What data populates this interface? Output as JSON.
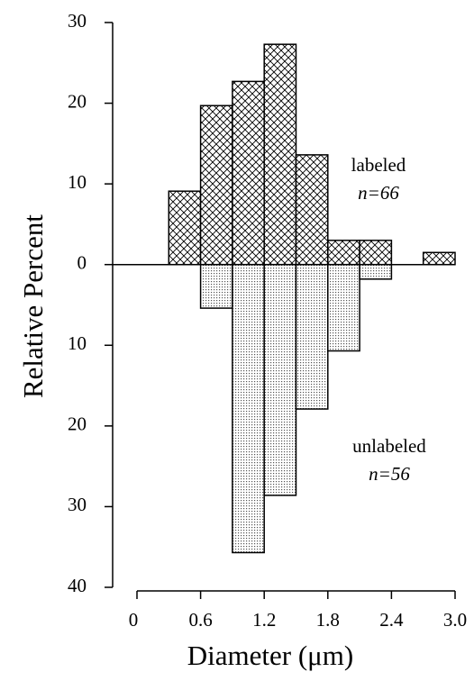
{
  "chart_data": {
    "type": "histogram",
    "ylabel": "Relative Percent",
    "xlabel": "Diameter (μm)",
    "bins": [
      0.3,
      0.6,
      0.9,
      1.2,
      1.5,
      1.8,
      2.1,
      2.4,
      2.7,
      3.0
    ],
    "series": [
      {
        "name": "labeled",
        "pattern": "crosshatch",
        "color": "#000000",
        "values": [
          9.1,
          19.7,
          22.7,
          27.3,
          13.6,
          3.0,
          3.0,
          0,
          1.5
        ]
      },
      {
        "name": "unlabeled",
        "pattern": "dots",
        "color": "#000000",
        "values": [
          0,
          -5.4,
          -35.7,
          -28.6,
          -17.9,
          -10.7,
          -1.8,
          0,
          0
        ]
      }
    ],
    "annotations": [
      {
        "text": "labeled",
        "sub": "n=66"
      },
      {
        "text": "unlabeled",
        "sub": "n=56"
      }
    ],
    "xlim": [
      0,
      3.0
    ],
    "xticks": [
      0,
      0.6,
      1.2,
      1.8,
      2.4,
      {
        "value": 3.0,
        "label": "3.0"
      }
    ],
    "ylim": [
      -40,
      30
    ],
    "yticks": [
      30,
      20,
      10,
      0,
      {
        "value": -10,
        "label": "10"
      },
      {
        "value": -20,
        "label": "20"
      },
      {
        "value": -30,
        "label": "30"
      },
      {
        "value": -40,
        "label": "40"
      }
    ]
  }
}
